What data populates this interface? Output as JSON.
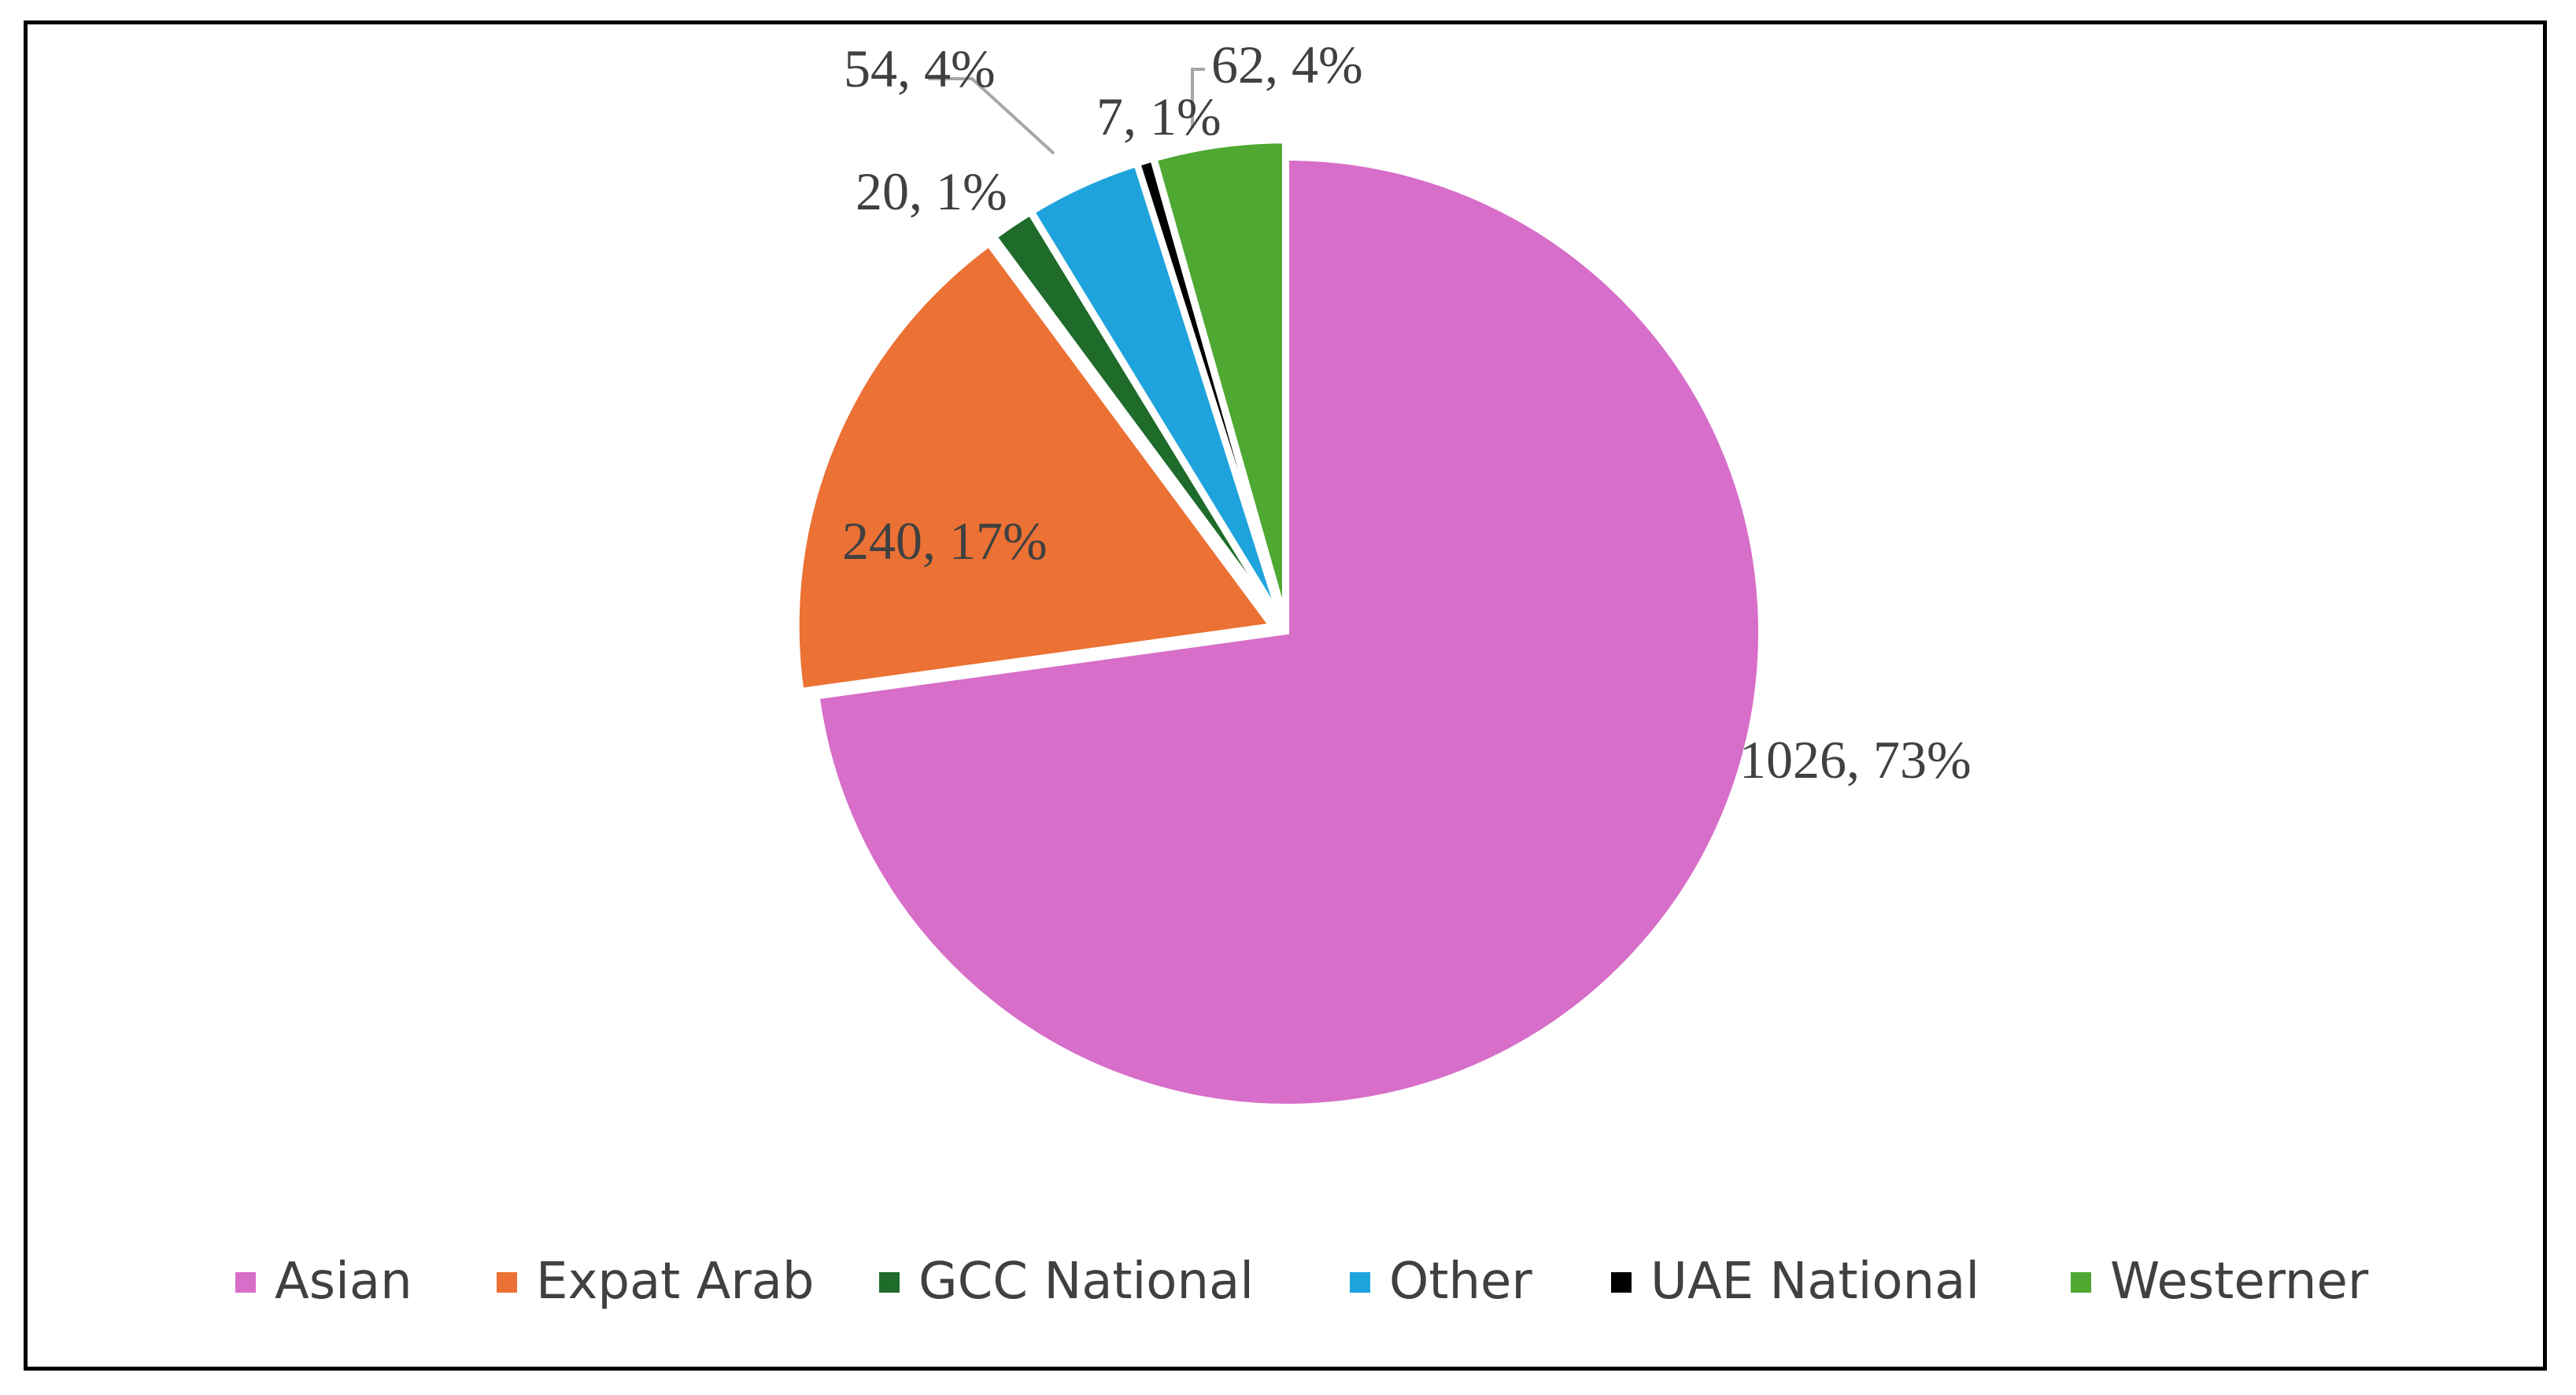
{
  "chart_data": {
    "type": "pie",
    "title": "",
    "categories": [
      "Asian",
      "Expat Arab",
      "GCC National",
      "Other",
      "UAE National",
      "Westerner"
    ],
    "values": [
      1026,
      240,
      20,
      54,
      7,
      62
    ],
    "data_labels": [
      "1026, 73%",
      "240, 17%",
      "20, 1%",
      "54, 4%",
      "7, 1%",
      "62, 4%"
    ],
    "colors": [
      "#d76ec9",
      "#eb7134",
      "#1e6b2a",
      "#1ea3dd",
      "#000000",
      "#4ea832"
    ],
    "start_angle_deg": 0,
    "direction": "clockwise",
    "exploded": true,
    "legend_position": "bottom",
    "grid": false
  }
}
